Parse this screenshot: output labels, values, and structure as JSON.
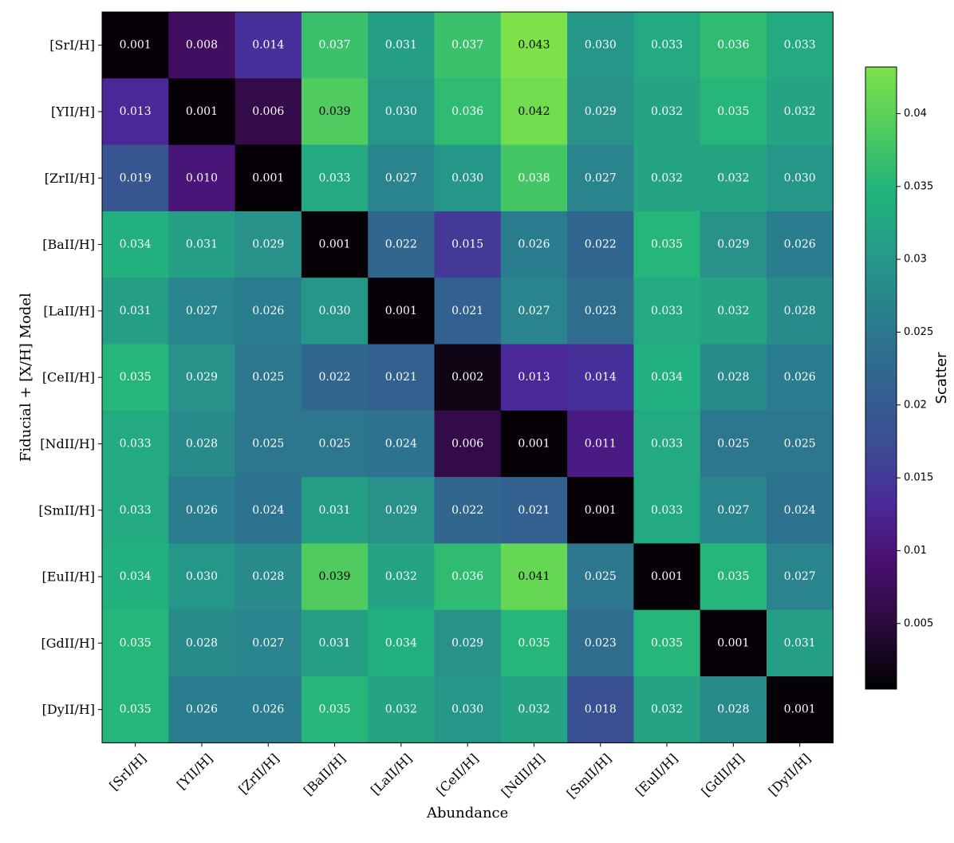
{
  "chart_data": {
    "type": "heatmap",
    "xlabel": "Abundance",
    "ylabel": "Fiducial + [X/H] Model",
    "x_categories": [
      "[SrI/H]",
      "[YII/H]",
      "[ZrII/H]",
      "[BaII/H]",
      "[LaII/H]",
      "[CeII/H]",
      "[NdII/H]",
      "[SmII/H]",
      "[EuII/H]",
      "[GdII/H]",
      "[DyII/H]"
    ],
    "y_categories": [
      "[SrI/H]",
      "[YII/H]",
      "[ZrII/H]",
      "[BaII/H]",
      "[LaII/H]",
      "[CeII/H]",
      "[NdII/H]",
      "[SmII/H]",
      "[EuII/H]",
      "[GdII/H]",
      "[DyII/H]"
    ],
    "values": [
      [
        0.001,
        0.008,
        0.014,
        0.037,
        0.031,
        0.037,
        0.043,
        0.03,
        0.033,
        0.036,
        0.033
      ],
      [
        0.013,
        0.001,
        0.006,
        0.039,
        0.03,
        0.036,
        0.042,
        0.029,
        0.032,
        0.035,
        0.032
      ],
      [
        0.019,
        0.01,
        0.001,
        0.033,
        0.027,
        0.03,
        0.038,
        0.027,
        0.032,
        0.032,
        0.03
      ],
      [
        0.034,
        0.031,
        0.029,
        0.001,
        0.022,
        0.015,
        0.026,
        0.022,
        0.035,
        0.029,
        0.026
      ],
      [
        0.031,
        0.027,
        0.026,
        0.03,
        0.001,
        0.021,
        0.027,
        0.023,
        0.033,
        0.032,
        0.028
      ],
      [
        0.035,
        0.029,
        0.025,
        0.022,
        0.021,
        0.002,
        0.013,
        0.014,
        0.034,
        0.028,
        0.026
      ],
      [
        0.033,
        0.028,
        0.025,
        0.025,
        0.024,
        0.006,
        0.001,
        0.011,
        0.033,
        0.025,
        0.025
      ],
      [
        0.033,
        0.026,
        0.024,
        0.031,
        0.029,
        0.022,
        0.021,
        0.001,
        0.033,
        0.027,
        0.024
      ],
      [
        0.034,
        0.03,
        0.028,
        0.039,
        0.032,
        0.036,
        0.041,
        0.025,
        0.001,
        0.035,
        0.027
      ],
      [
        0.035,
        0.028,
        0.027,
        0.031,
        0.034,
        0.029,
        0.035,
        0.023,
        0.035,
        0.001,
        0.031
      ],
      [
        0.035,
        0.026,
        0.026,
        0.035,
        0.032,
        0.03,
        0.032,
        0.018,
        0.032,
        0.028,
        0.001
      ]
    ],
    "colorbar": {
      "label": "Scatter",
      "range": [
        0.0005,
        0.0432
      ],
      "ticks": [
        0.005,
        0.01,
        0.015,
        0.02,
        0.025,
        0.03,
        0.035,
        0.04
      ],
      "tick_labels": [
        "0.005",
        "0.01",
        "0.015",
        "0.02",
        "0.025",
        "0.03",
        "0.035",
        "0.04"
      ],
      "colormap": "black-purple-blue-teal-green",
      "colormap_stops": [
        "#000000",
        "#2a0a3a",
        "#4a0f6e",
        "#4a2a9a",
        "#3a4f93",
        "#31658e",
        "#2a7e8e",
        "#259a88",
        "#22b47c",
        "#4fcb5f",
        "#7ee24a"
      ]
    }
  }
}
